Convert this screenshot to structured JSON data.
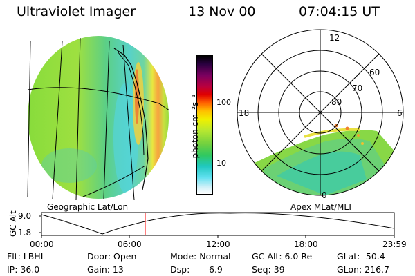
{
  "header": {
    "instrument": "Ultraviolet Imager",
    "date": "13 Nov 00",
    "time": "07:04:15 UT"
  },
  "left_panel": {
    "caption": "Geographic Lat/Lon"
  },
  "right_panel": {
    "caption": "Apex MLat/MLT",
    "mlt_labels": [
      "12",
      "18",
      "6",
      "0"
    ],
    "mlat_labels": [
      "60",
      "70",
      "80"
    ]
  },
  "colorbar": {
    "unit_label": "photon cm⁻²s⁻¹",
    "ticks": [
      "100",
      "10"
    ],
    "scale": "log",
    "colors": [
      "#000000",
      "#2a0040",
      "#7a0060",
      "#b80040",
      "#e00000",
      "#ff6000",
      "#ffc000",
      "#f0f000",
      "#b8e830",
      "#70d040",
      "#30c860",
      "#20c8c0",
      "#60e0f0",
      "#d0f0f8",
      "#ffffff"
    ]
  },
  "timeline": {
    "y_axis_label": "GC Alt",
    "y_ticks": [
      "9.0",
      "1.8"
    ],
    "x_ticks": [
      "00:00",
      "06:00",
      "12:00",
      "18:00",
      "23:59"
    ],
    "marker_color": "#ff0000",
    "marker_time": "07:04:15"
  },
  "info": {
    "row1": [
      "Flt: LBHL",
      "Door: Open",
      "Mode: Normal",
      "GC Alt: 6.0 Re",
      "GLat: -50.4"
    ],
    "row2": [
      "IP: 36.0",
      "Gain: 13",
      "Dsp:",
      "6.9",
      "Seq: 39",
      "GLon: 216.7"
    ]
  }
}
